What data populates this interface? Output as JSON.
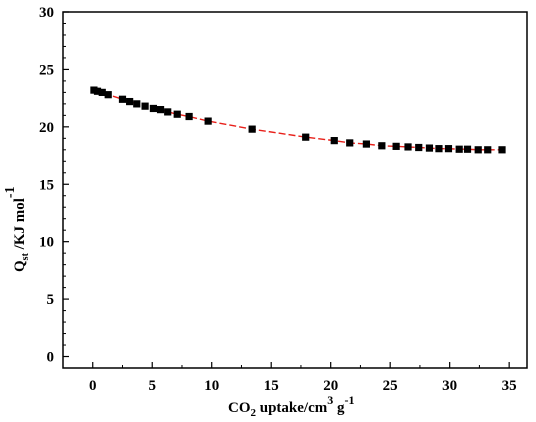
{
  "chart_data": {
    "type": "scatter",
    "title": "",
    "xlabel": {
      "main": "CO",
      "main_sub": "2",
      "rest": " uptake/cm",
      "sup": "3",
      "unit_tail": " g",
      "tail_sup": "-1"
    },
    "ylabel": {
      "main": "Q",
      "main_sub": "st",
      "rest": " /KJ mol",
      "sup": "-1"
    },
    "xlim": [
      -2.5,
      36.5
    ],
    "ylim": [
      -1,
      30
    ],
    "xticks": [
      0,
      5,
      10,
      15,
      20,
      25,
      30,
      35
    ],
    "xtick_labels": [
      "0",
      "5",
      "10",
      "15",
      "20",
      "25",
      "30",
      "35"
    ],
    "yticks": [
      0,
      5,
      10,
      15,
      20,
      25,
      30
    ],
    "ytick_labels": [
      "0",
      "5",
      "10",
      "15",
      "20",
      "25",
      "30"
    ],
    "grid": false,
    "series": [
      {
        "marker": "square",
        "marker_color": "#000000",
        "line_color": "#e8201a",
        "x": [
          0.1,
          0.4,
          0.8,
          1.3,
          2.5,
          3.1,
          3.7,
          4.4,
          5.1,
          5.7,
          6.3,
          7.1,
          8.1,
          9.7,
          13.4,
          17.9,
          20.3,
          21.6,
          23.0,
          24.3,
          25.5,
          26.5,
          27.4,
          28.3,
          29.1,
          29.9,
          30.8,
          31.5,
          32.4,
          33.2,
          34.4
        ],
        "y": [
          23.2,
          23.1,
          23.0,
          22.8,
          22.4,
          22.2,
          22.0,
          21.8,
          21.6,
          21.5,
          21.3,
          21.1,
          20.9,
          20.5,
          19.8,
          19.1,
          18.8,
          18.6,
          18.5,
          18.35,
          18.3,
          18.25,
          18.2,
          18.15,
          18.1,
          18.1,
          18.05,
          18.05,
          18.0,
          18.0,
          18.0
        ]
      }
    ]
  }
}
